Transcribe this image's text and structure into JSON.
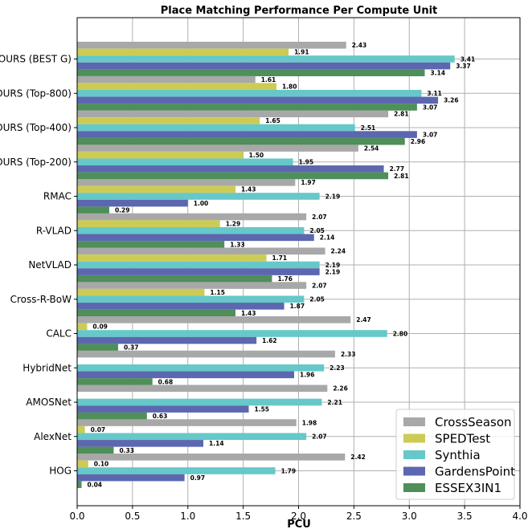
{
  "chart_data": {
    "type": "bar",
    "orientation": "horizontal",
    "title": "Place Matching Performance Per Compute Unit",
    "xlabel": "PCU",
    "ylabel": "",
    "xlim": [
      0,
      4.0
    ],
    "xticks": [
      "0.0",
      "0.5",
      "1.0",
      "1.5",
      "2.0",
      "2.5",
      "3.0",
      "3.5",
      "4.0"
    ],
    "grid": true,
    "legend_position": "lower-right",
    "categories": [
      "OURS (BEST G)",
      "OURS (Top-800)",
      "OURS (Top-400)",
      "OURS (Top-200)",
      "RMAC",
      "R-VLAD",
      "NetVLAD",
      "Cross-R-BoW",
      "CALC",
      "HybridNet",
      "AMOSNet",
      "AlexNet",
      "HOG"
    ],
    "series": [
      {
        "name": "CrossSeason",
        "color": "#a8a8a8",
        "values": [
          2.43,
          1.61,
          2.81,
          2.54,
          1.97,
          2.07,
          2.24,
          2.07,
          2.47,
          2.33,
          2.26,
          1.98,
          2.42
        ]
      },
      {
        "name": "SPEDTest",
        "color": "#cccc55",
        "values": [
          1.91,
          1.8,
          1.65,
          1.5,
          1.43,
          1.29,
          1.71,
          1.15,
          0.09,
          null,
          null,
          0.07,
          0.1
        ]
      },
      {
        "name": "Synthia",
        "color": "#66c8c8",
        "values": [
          3.41,
          3.11,
          2.51,
          1.95,
          2.19,
          2.05,
          2.19,
          2.05,
          2.8,
          2.23,
          2.21,
          2.07,
          1.79
        ]
      },
      {
        "name": "GardensPoint",
        "color": "#5c67b0",
        "values": [
          3.37,
          3.26,
          3.07,
          2.77,
          1.0,
          2.14,
          2.19,
          1.87,
          1.62,
          1.96,
          1.55,
          1.14,
          0.97
        ]
      },
      {
        "name": "ESSEX3IN1",
        "color": "#4e8f5a",
        "values": [
          3.14,
          3.07,
          2.96,
          2.81,
          0.29,
          1.33,
          1.76,
          1.43,
          0.37,
          0.68,
          0.63,
          0.33,
          0.04
        ]
      }
    ]
  }
}
